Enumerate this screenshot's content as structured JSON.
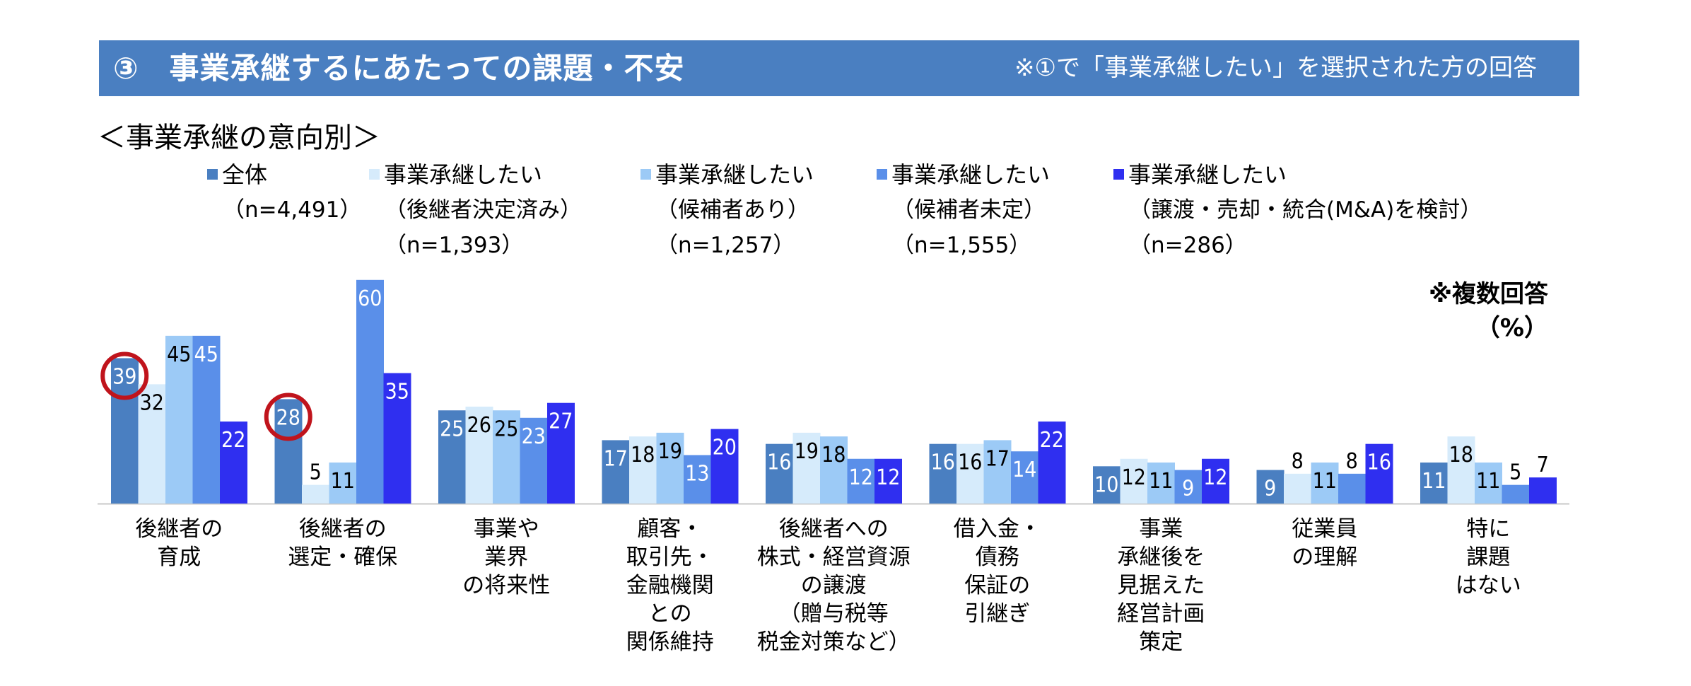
{
  "header": {
    "title": "③　事業承継するにあたっての課題・不安",
    "note": "※①で「事業承継したい」を選択された方の回答"
  },
  "subtitle": "＜事業承継の意向別＞",
  "note": {
    "multi": "※複数回答",
    "unit": "（%）"
  },
  "legend": [
    {
      "label": "全体",
      "sub": [
        "（n=4,491）"
      ]
    },
    {
      "label": "事業承継したい",
      "sub": [
        "（後継者決定済み）",
        "（n=1,393）"
      ]
    },
    {
      "label": "事業承継したい",
      "sub": [
        "（候補者あり）",
        "（n=1,257）"
      ]
    },
    {
      "label": "事業承継したい",
      "sub": [
        "（候補者未定）",
        "（n=1,555）"
      ]
    },
    {
      "label": "事業承継したい",
      "sub": [
        "（譲渡・売却・統合(M&A)を検討）",
        "（n=286）"
      ]
    }
  ],
  "chart_data": {
    "type": "bar",
    "categories": [
      [
        "後継者の",
        "育成"
      ],
      [
        "後継者の",
        "選定・確保"
      ],
      [
        "事業や",
        "業界",
        "の将来性"
      ],
      [
        "顧客・",
        "取引先・",
        "金融機関",
        "との",
        "関係維持"
      ],
      [
        "後継者への",
        "株式・経営資源",
        "の譲渡",
        "（贈与税等",
        "税金対策など）"
      ],
      [
        "借入金・",
        "債務",
        "保証の",
        "引継ぎ"
      ],
      [
        "事業",
        "承継後を",
        "見据えた",
        "経営計画",
        "策定"
      ],
      [
        "従業員",
        "の理解"
      ],
      [
        "特に",
        "課題",
        "はない"
      ]
    ],
    "series": [
      {
        "name": "全体",
        "color": "#4a7fc1",
        "values": [
          39,
          28,
          25,
          17,
          16,
          16,
          10,
          9,
          11
        ]
      },
      {
        "name": "事業承継したい（後継者決定済み）",
        "color": "#d6ebfb",
        "values": [
          32,
          5,
          26,
          18,
          19,
          16,
          12,
          8,
          18
        ]
      },
      {
        "name": "事業承継したい（候補者あり）",
        "color": "#9ccaf6",
        "values": [
          45,
          11,
          25,
          19,
          18,
          17,
          11,
          11,
          11
        ]
      },
      {
        "name": "事業承継したい（候補者未定）",
        "color": "#5a8fe9",
        "values": [
          45,
          60,
          23,
          13,
          12,
          14,
          9,
          8,
          5
        ]
      },
      {
        "name": "事業承継したい（譲渡・売却・統合(M&A)を検討）",
        "color": "#2f2ff0",
        "values": [
          22,
          35,
          27,
          20,
          12,
          22,
          12,
          16,
          7
        ]
      }
    ],
    "ylim": [
      0,
      60
    ],
    "unit": "%",
    "highlighted": [
      {
        "category": 0,
        "series": 0,
        "value": 39
      },
      {
        "category": 1,
        "series": 0,
        "value": 28
      }
    ]
  }
}
